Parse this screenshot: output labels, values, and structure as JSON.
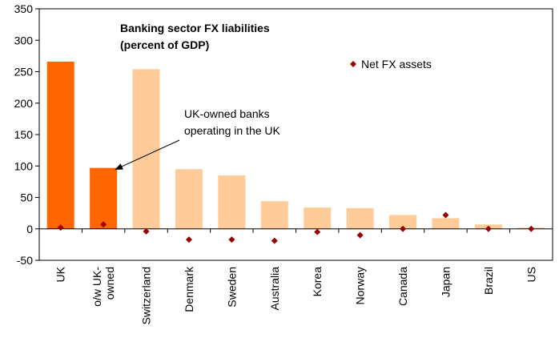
{
  "chart_data": {
    "type": "bar",
    "title_lines": [
      "Banking sector FX liabilities",
      "(percent of GDP)"
    ],
    "categories": [
      [
        "UK"
      ],
      [
        "o/w UK-",
        "owned"
      ],
      [
        "Switzerland"
      ],
      [
        "Denmark"
      ],
      [
        "Sweden"
      ],
      [
        "Australia"
      ],
      [
        "Korea"
      ],
      [
        "Norway"
      ],
      [
        "Canada"
      ],
      [
        "Japan"
      ],
      [
        "Brazil"
      ],
      [
        "US"
      ]
    ],
    "series": [
      {
        "values": [
          266,
          97,
          254,
          95,
          85,
          44,
          34,
          33,
          22,
          17,
          7,
          2
        ],
        "colors": [
          "#FF6600",
          "#FF6600",
          "#FFCC99",
          "#FFCC99",
          "#FFCC99",
          "#FFCC99",
          "#FFCC99",
          "#FFCC99",
          "#FFCC99",
          "#FFCC99",
          "#FFCC99",
          "#FFCC99"
        ]
      },
      {
        "name": "Net FX assets",
        "type": "scatter",
        "values": [
          2,
          7,
          -4,
          -17,
          -17,
          -19,
          -5,
          -10,
          0,
          22,
          0,
          0
        ],
        "color": "#990000"
      }
    ],
    "ylim": [
      -50,
      350
    ],
    "yticks": [
      -50,
      0,
      50,
      100,
      150,
      200,
      250,
      300,
      350
    ],
    "legend_position": "top-right",
    "annotation": {
      "text_lines": [
        "UK-owned banks",
        "operating in the UK"
      ],
      "points_to_category": 1
    }
  }
}
